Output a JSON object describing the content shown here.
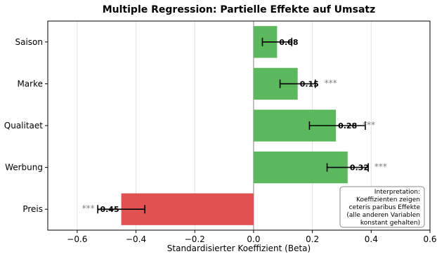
{
  "chart_data": {
    "type": "bar",
    "orientation": "horizontal",
    "title": "Multiple Regression: Partielle Effekte auf Umsatz",
    "xlabel": "Standardisierter Koeffizient (Beta)",
    "ylabel": "",
    "xlim": [
      -0.7,
      0.6
    ],
    "xticks": [
      -0.6,
      -0.4,
      -0.2,
      0.0,
      0.2,
      0.4,
      0.6
    ],
    "xtick_labels": [
      "−0.6",
      "−0.4",
      "−0.2",
      "0.0",
      "0.2",
      "0.4",
      "0.6"
    ],
    "grid": "x",
    "categories": [
      "Saison",
      "Marke",
      "Qualitaet",
      "Werbung",
      "Preis"
    ],
    "values": [
      0.08,
      0.15,
      0.28,
      0.32,
      -0.45
    ],
    "value_labels": [
      "0.08",
      "0.15",
      "0.28",
      "0.32",
      "-0.45"
    ],
    "ci_low": [
      0.03,
      0.09,
      0.19,
      0.25,
      -0.53
    ],
    "ci_high": [
      0.13,
      0.21,
      0.38,
      0.39,
      -0.37
    ],
    "significance": [
      "",
      "***",
      "***",
      "***",
      "***"
    ],
    "colors": {
      "positive": "#5cb85c",
      "negative": "#e05252",
      "error_bar": "#000000",
      "significance": "#808080"
    },
    "annotation": {
      "lines": [
        "Interpretation:",
        "Koeffizienten zeigen",
        "ceteris paribus Effekte",
        "(alle anderen Variablen",
        "konstant gehalten)"
      ],
      "placement": "bottom-right"
    }
  }
}
